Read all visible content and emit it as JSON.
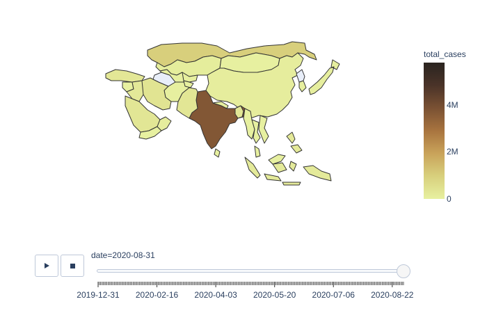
{
  "colors": {
    "scale": [
      "#e7f0a0",
      "#d8d07d",
      "#c9a35a",
      "#a8743f",
      "#7a5133",
      "#4a3328",
      "#2a2420"
    ],
    "missing": "#e8eef9",
    "border": "#333333",
    "text": "#2a3f5f"
  },
  "chart_data": {
    "type": "choropleth",
    "scope": "asia",
    "color_metric": "total_cases",
    "date": "2020-08-31",
    "colorbar": {
      "title": "total_cases",
      "min": 0,
      "max": 5800000,
      "ticks": [
        {
          "value": 0,
          "label": "0"
        },
        {
          "value": 2000000,
          "label": "2M"
        },
        {
          "value": 4000000,
          "label": "4M"
        }
      ]
    },
    "regions": [
      {
        "name": "India",
        "value": 3690000
      },
      {
        "name": "Iran",
        "value": 373000
      },
      {
        "name": "Saudi Arabia",
        "value": 315000
      },
      {
        "name": "Pakistan",
        "value": 296000
      },
      {
        "name": "Bangladesh",
        "value": 312000
      },
      {
        "name": "Turkey",
        "value": 270000
      },
      {
        "name": "Iraq",
        "value": 230000
      },
      {
        "name": "Indonesia",
        "value": 175000
      },
      {
        "name": "Philippines",
        "value": 221000
      },
      {
        "name": "Kazakhstan",
        "value": 105000
      },
      {
        "name": "China",
        "value": 90000
      },
      {
        "name": "Japan",
        "value": 68000
      },
      {
        "name": "Afghanistan",
        "value": 38000
      },
      {
        "name": "Oman",
        "value": 85000
      },
      {
        "name": "Uzbekistan",
        "value": 41000
      },
      {
        "name": "Kyrgyzstan",
        "value": 44000
      },
      {
        "name": "Nepal",
        "value": 39000
      },
      {
        "name": "Syria",
        "value": 2500
      },
      {
        "name": "Yemen",
        "value": 1950
      },
      {
        "name": "Tajikistan",
        "value": 8900
      },
      {
        "name": "Mongolia",
        "value": 300
      },
      {
        "name": "Myanmar",
        "value": 800
      },
      {
        "name": "Thailand",
        "value": 3400
      },
      {
        "name": "Vietnam",
        "value": 1000
      },
      {
        "name": "Malaysia",
        "value": 9300
      },
      {
        "name": "South Korea",
        "value": 20000
      },
      {
        "name": "Sri Lanka",
        "value": 3000
      },
      {
        "name": "Russia",
        "value": 990000
      }
    ],
    "no_data_regions": [
      "Turkmenistan",
      "North Korea"
    ]
  },
  "slider": {
    "current_label": "date=2020-08-31",
    "value": "2020-08-31",
    "range": [
      "2019-12-31",
      "2020-08-31"
    ],
    "tick_labels": [
      "2019-12-31",
      "2020-02-16",
      "2020-04-03",
      "2020-05-20",
      "2020-07-06",
      "2020-08-22"
    ],
    "step_count": 245
  },
  "controls": {
    "play_icon": "play-icon",
    "stop_icon": "stop-icon"
  }
}
